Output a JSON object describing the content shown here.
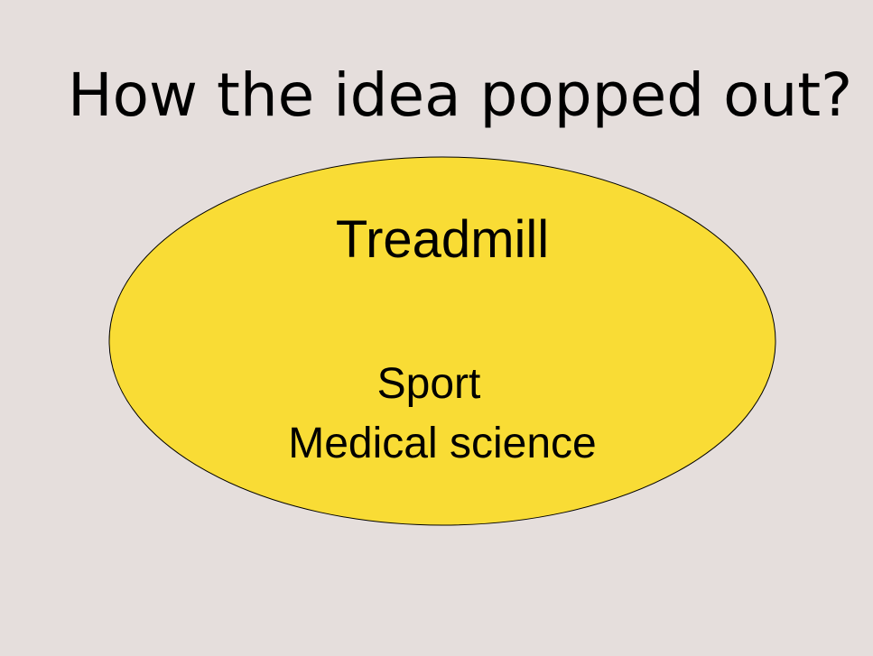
{
  "slide": {
    "background_color": "#e5dedc",
    "title": "How the idea popped out?"
  },
  "ellipse": {
    "fill_color": "#f9dc35",
    "stroke_color": "#000000",
    "main_label": "Treadmill",
    "sub_labels": [
      "Sport",
      "Medical science"
    ]
  }
}
